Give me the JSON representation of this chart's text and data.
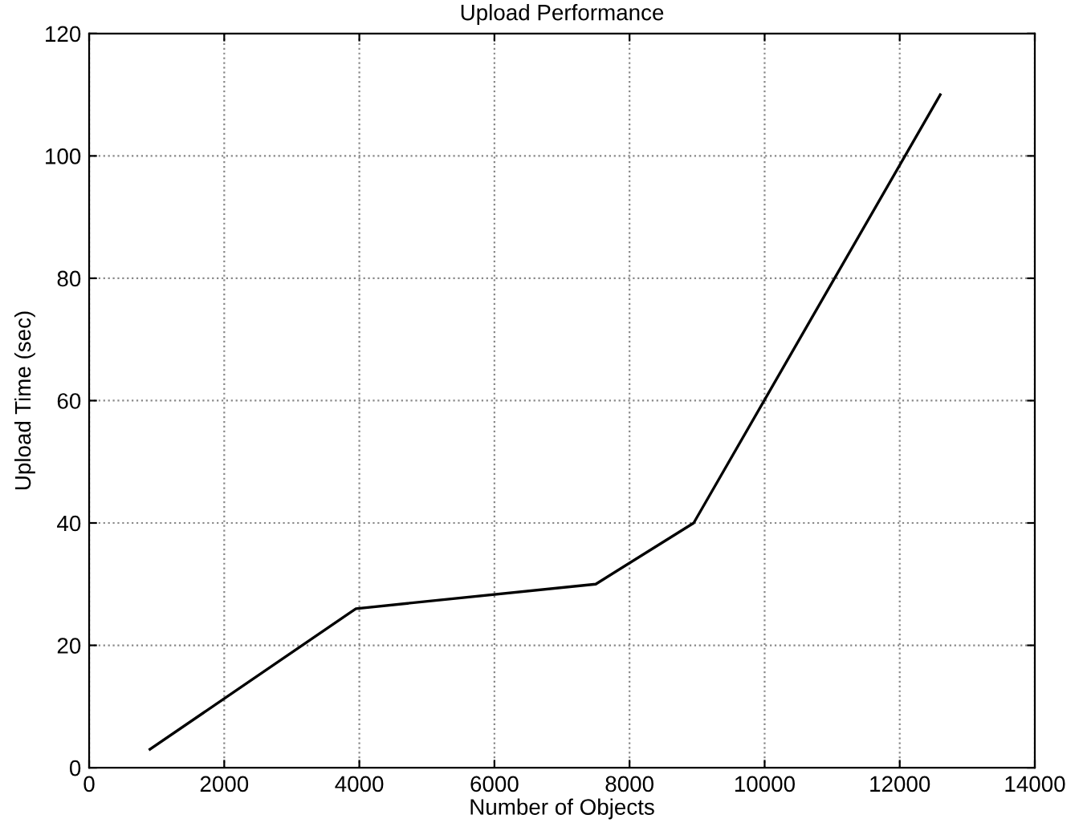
{
  "chart_data": {
    "type": "line",
    "title": "Upload Performance",
    "xlabel": "Number of Objects",
    "ylabel": "Upload Time (sec)",
    "x": [
      900,
      3950,
      7500,
      8950,
      12600
    ],
    "series": [
      {
        "color": "#000000",
        "values": [
          3,
          26,
          30,
          40,
          110
        ]
      }
    ],
    "xlim": [
      0,
      14000
    ],
    "xticks": [
      0,
      2000,
      4000,
      6000,
      8000,
      10000,
      12000,
      14000
    ],
    "ylim": [
      0,
      120
    ],
    "yticks": [
      0,
      20,
      40,
      60,
      80,
      100,
      120
    ],
    "grid": true,
    "line_style": "solid",
    "marker": "none"
  }
}
